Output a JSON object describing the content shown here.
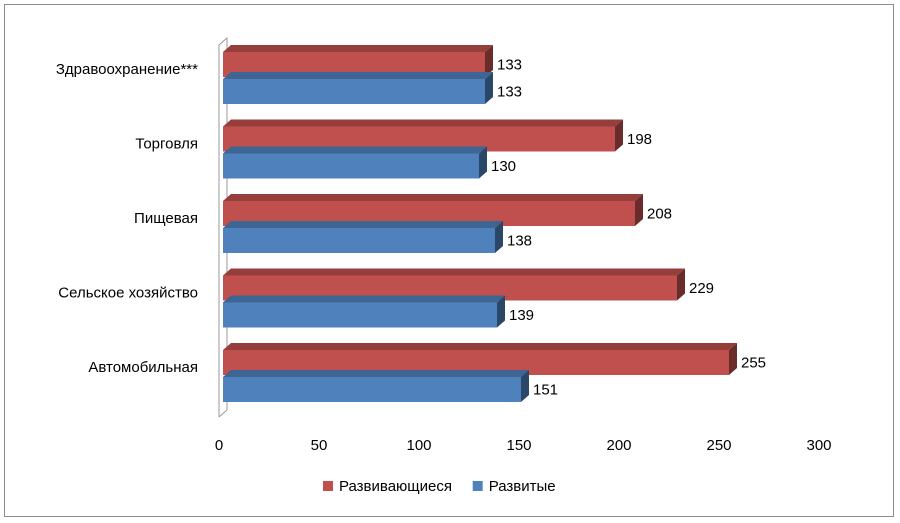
{
  "chart_data": {
    "type": "bar",
    "orientation": "horizontal",
    "three_d": true,
    "categories": [
      "Здравоохранение***",
      "Торговля",
      "Пищевая",
      "Сельское хозяйство",
      "Автомобильная"
    ],
    "series": [
      {
        "name": "Развивающиеся",
        "color": "#c0504d",
        "values": [
          133,
          198,
          208,
          229,
          255
        ]
      },
      {
        "name": "Развитые",
        "color": "#4f81bd",
        "values": [
          133,
          130,
          138,
          139,
          151
        ]
      }
    ],
    "xlim": [
      0,
      300
    ],
    "x_ticks": [
      0,
      50,
      100,
      150,
      200,
      250,
      300
    ],
    "gridlines": false,
    "legend_position": "bottom",
    "data_labels": true
  }
}
